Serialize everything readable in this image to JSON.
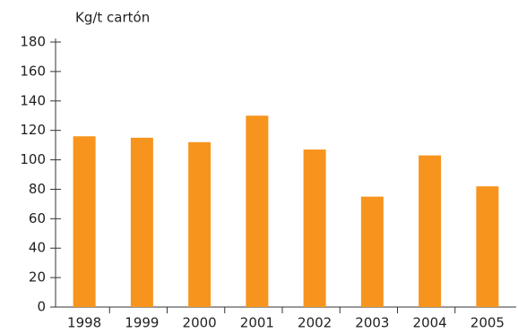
{
  "chart_data": {
    "type": "bar",
    "y_label": "Kg/t cartón",
    "categories": [
      "1998",
      "1999",
      "2000",
      "2001",
      "2002",
      "2003",
      "2004",
      "2005"
    ],
    "values": [
      116,
      115,
      112,
      130,
      107,
      75,
      103,
      82
    ],
    "color": "#f7941d",
    "ylim": [
      0,
      180
    ],
    "yticks": [
      0,
      20,
      40,
      60,
      80,
      100,
      120,
      140,
      160,
      180
    ],
    "grid": false
  }
}
